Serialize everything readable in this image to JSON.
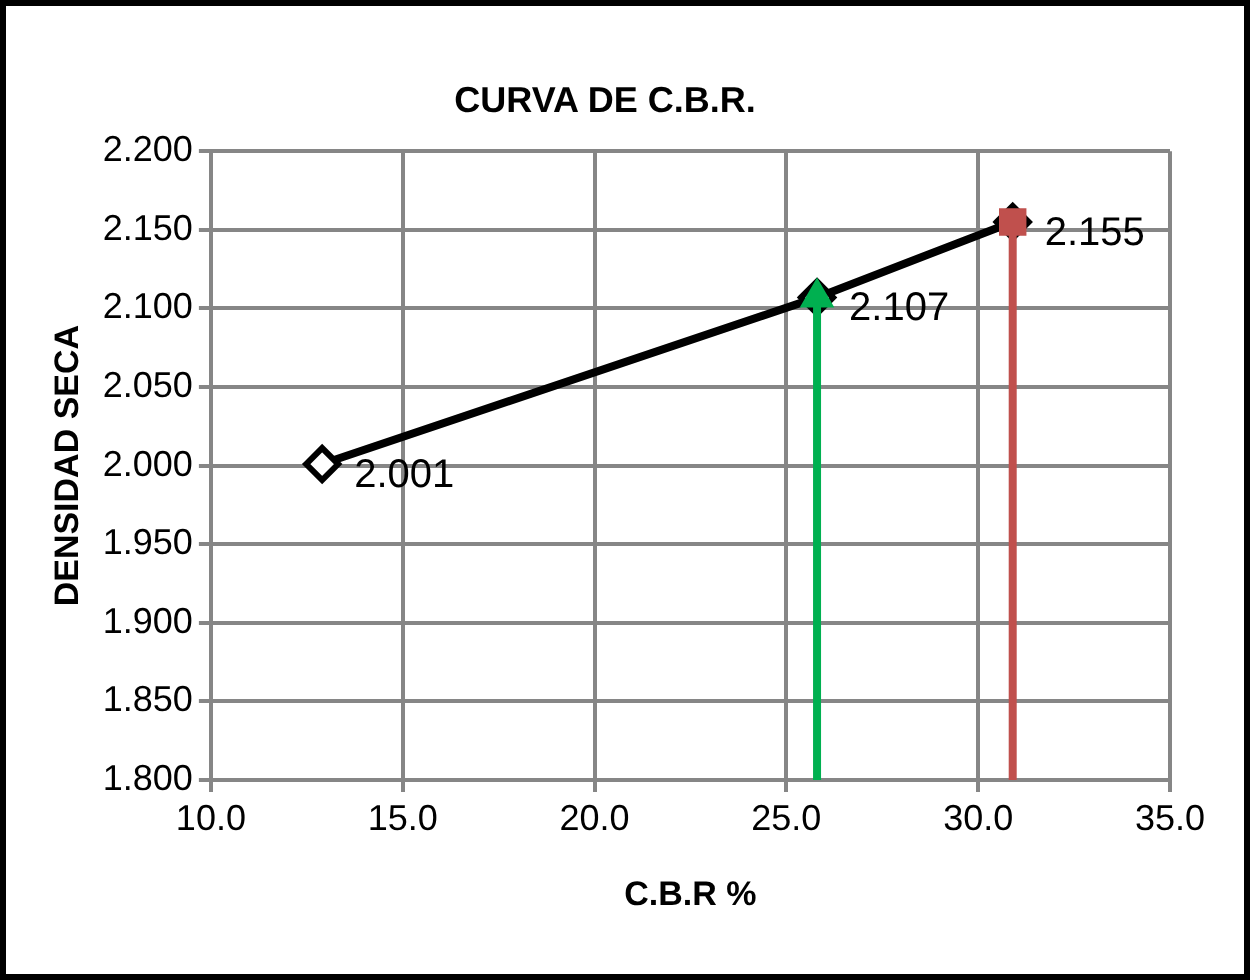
{
  "chart_data": {
    "type": "line",
    "title": "CURVA DE C.B.R.",
    "xlabel": "C.B.R %",
    "ylabel": "DENSIDAD SECA",
    "x": [
      12.9,
      25.8,
      30.9
    ],
    "series": [
      {
        "color": "#000000",
        "values": [
          2.001,
          2.107,
          2.155
        ],
        "value_labels": [
          "2.001",
          "2.107",
          "2.155"
        ],
        "marker": "diamond"
      },
      {
        "type": "lollipop",
        "color": "#00b050",
        "values": [
          null,
          2.107,
          null
        ],
        "marker": "triangle"
      },
      {
        "type": "lollipop",
        "color": "#c0504d",
        "values": [
          null,
          null,
          2.155
        ],
        "marker": "square"
      }
    ],
    "xlim": [
      10,
      35
    ],
    "xticks": [
      {
        "value": 10,
        "label": "10.0"
      },
      {
        "value": 15,
        "label": "15.0"
      },
      {
        "value": 20,
        "label": "20.0"
      },
      {
        "value": 25,
        "label": "25.0"
      },
      {
        "value": 30,
        "label": "30.0"
      },
      {
        "value": 35,
        "label": "35.0"
      }
    ],
    "ylim": [
      1.8,
      2.2
    ],
    "yticks": [
      {
        "value": 1.8,
        "label": "1.800"
      },
      {
        "value": 1.85,
        "label": "1.850"
      },
      {
        "value": 1.9,
        "label": "1.900"
      },
      {
        "value": 1.95,
        "label": "1.950"
      },
      {
        "value": 2.0,
        "label": "2.000"
      },
      {
        "value": 2.05,
        "label": "2.050"
      },
      {
        "value": 2.1,
        "label": "2.100"
      },
      {
        "value": 2.15,
        "label": "2.150"
      },
      {
        "value": 2.2,
        "label": "2.200"
      }
    ],
    "grid": true,
    "legend": false
  }
}
